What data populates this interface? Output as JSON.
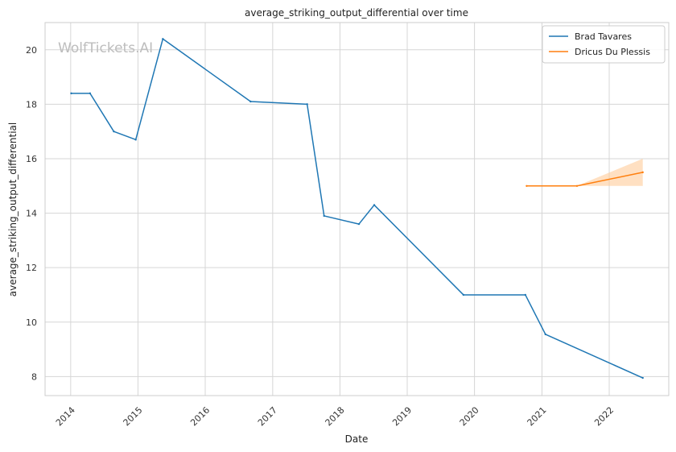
{
  "chart_data": {
    "type": "line",
    "title": "average_striking_output_differential over time",
    "xlabel": "Date",
    "ylabel": "average_striking_output_differential",
    "watermark": "WolfTickets.AI",
    "xlim": [
      "2013-08-15",
      "2022-11-20"
    ],
    "ylim": [
      7.3,
      21.0
    ],
    "x_ticks": [
      "2014",
      "2015",
      "2016",
      "2017",
      "2018",
      "2019",
      "2020",
      "2021",
      "2022"
    ],
    "y_ticks": [
      8,
      10,
      12,
      14,
      16,
      18,
      20
    ],
    "grid": true,
    "legend_position": "top-right",
    "series": [
      {
        "name": "Brad Tavares",
        "color": "#1f77b4",
        "points": [
          {
            "x": "2014-01-04",
            "y": 18.4
          },
          {
            "x": "2014-04-16",
            "y": 18.4
          },
          {
            "x": "2014-08-23",
            "y": 17.0
          },
          {
            "x": "2014-12-20",
            "y": 16.7
          },
          {
            "x": "2015-05-16",
            "y": 20.4
          },
          {
            "x": "2016-09-03",
            "y": 18.1
          },
          {
            "x": "2017-07-07",
            "y": 18.0
          },
          {
            "x": "2017-10-07",
            "y": 13.9
          },
          {
            "x": "2018-04-14",
            "y": 13.6
          },
          {
            "x": "2018-07-06",
            "y": 14.3
          },
          {
            "x": "2019-11-02",
            "y": 11.0
          },
          {
            "x": "2020-10-03",
            "y": 11.0
          },
          {
            "x": "2021-01-20",
            "y": 9.55
          },
          {
            "x": "2022-07-02",
            "y": 7.95
          }
        ]
      },
      {
        "name": "Dricus Du Plessis",
        "color": "#ff7f0e",
        "band_color": "#ffcc99",
        "points": [
          {
            "x": "2020-10-10",
            "y": 15.0
          },
          {
            "x": "2021-07-10",
            "y": 15.0
          },
          {
            "x": "2022-07-02",
            "y": 15.5
          }
        ],
        "band": [
          {
            "x": "2020-10-10",
            "lo": 15.0,
            "hi": 15.0
          },
          {
            "x": "2021-07-10",
            "lo": 15.0,
            "hi": 15.0
          },
          {
            "x": "2022-07-02",
            "lo": 15.0,
            "hi": 16.0
          }
        ]
      }
    ]
  }
}
